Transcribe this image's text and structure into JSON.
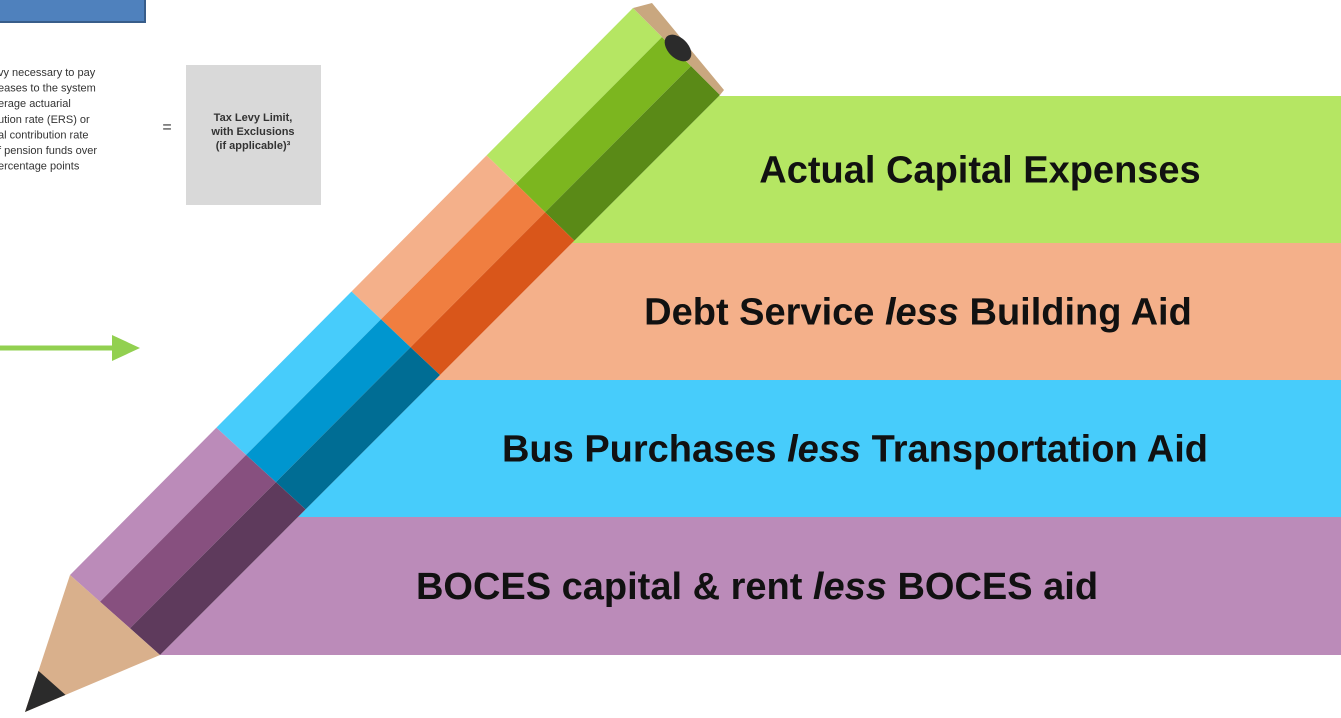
{
  "left_text": {
    "lines": [
      "vy necessary to pay",
      "eases to the system",
      "erage actuarial",
      "ution rate (ERS) or",
      "al contribution rate",
      "f pension funds over",
      "ercentage points"
    ]
  },
  "equals": "=",
  "result_box": {
    "lines": [
      "Tax Levy Limit,",
      "with Exclusions",
      "(if applicable)³"
    ]
  },
  "exclusions": [
    {
      "before": "Actual Capital Expenses"
    },
    {
      "before": "Debt Service ",
      "emphasis": "less",
      "after": " Building Aid"
    },
    {
      "before": "Bus Purchases ",
      "emphasis": "less",
      "after": " Transportation Aid"
    },
    {
      "before": "BOCES capital & rent ",
      "emphasis": "less",
      "after": " BOCES aid"
    }
  ]
}
